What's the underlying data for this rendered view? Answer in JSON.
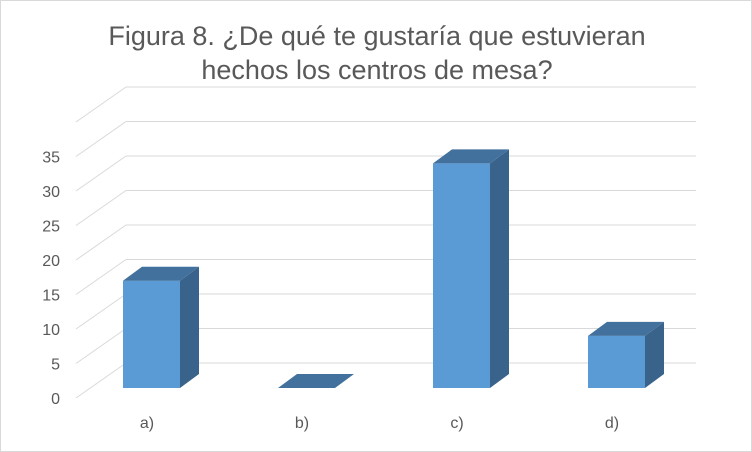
{
  "chart_data": {
    "type": "bar",
    "title_line1": "Figura 8. ¿De qué te gustaría que estuvieran",
    "title_line2": "hechos los centros de mesa?",
    "categories": [
      "a)",
      "b)",
      "c)",
      "d)"
    ],
    "values": [
      17,
      0,
      34,
      9
    ],
    "ylim": [
      0,
      35
    ],
    "yticks": [
      "0",
      "5",
      "10",
      "15",
      "20",
      "25",
      "30",
      "35"
    ],
    "xlabel": "",
    "ylabel": "",
    "grid": true,
    "style": "3d-column",
    "colors": {
      "front": "#5b9bd5",
      "side": "#3a638c",
      "top": "#41719c",
      "grid": "#d9d9d9"
    }
  }
}
